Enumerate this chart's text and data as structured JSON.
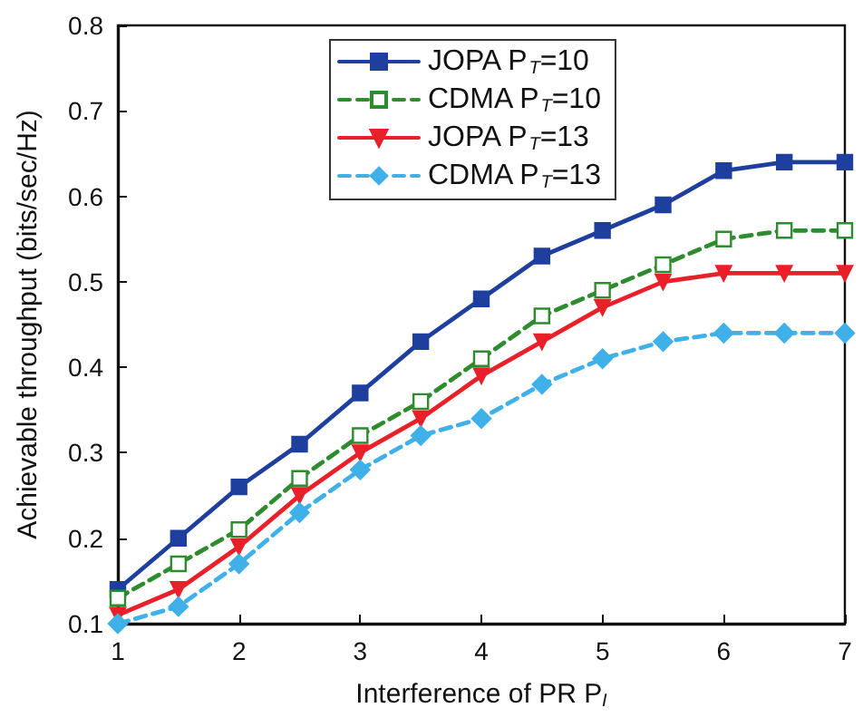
{
  "chart_data": {
    "type": "line",
    "xlabel": "Interference of PR P$_{I}$",
    "ylabel": "Achievable throughput (bits/sec/Hz)",
    "x": [
      1,
      1.5,
      2,
      2.5,
      3,
      3.5,
      4,
      4.5,
      5,
      5.5,
      6,
      6.5,
      7
    ],
    "series": [
      {
        "name": "JOPA P$_{T}$=10",
        "color": "#1f3f9e",
        "marker": "square",
        "line_style": "solid",
        "values": [
          0.14,
          0.2,
          0.26,
          0.31,
          0.37,
          0.43,
          0.48,
          0.53,
          0.56,
          0.59,
          0.63,
          0.64,
          0.64
        ]
      },
      {
        "name": "CDMA P$_{T}$=10",
        "color": "#2e8b2e",
        "marker": "square",
        "line_style": "dashed",
        "values": [
          0.13,
          0.17,
          0.21,
          0.27,
          0.32,
          0.36,
          0.41,
          0.46,
          0.49,
          0.52,
          0.55,
          0.56,
          0.56
        ]
      },
      {
        "name": "JOPA P$_{T}$=13",
        "color": "#e8202a",
        "marker": "triangle",
        "line_style": "solid",
        "values": [
          0.11,
          0.14,
          0.19,
          0.25,
          0.3,
          0.34,
          0.39,
          0.43,
          0.47,
          0.5,
          0.51,
          0.51,
          0.51
        ]
      },
      {
        "name": "CDMA P$_{T}$=13",
        "color": "#3fb0e8",
        "marker": "diamond",
        "line_style": "dashed",
        "values": [
          0.1,
          0.12,
          0.17,
          0.23,
          0.28,
          0.32,
          0.34,
          0.38,
          0.41,
          0.43,
          0.44,
          0.44,
          0.44
        ]
      }
    ],
    "xlim": [
      1,
      7
    ],
    "xticks": [
      1,
      2,
      3,
      4,
      5,
      6,
      7
    ],
    "ylim": [
      0.1,
      0.8
    ],
    "yticks": [
      0.1,
      0.2,
      0.3,
      0.4,
      0.5,
      0.6,
      0.7,
      0.8
    ],
    "grid": false,
    "legend": "top left"
  }
}
